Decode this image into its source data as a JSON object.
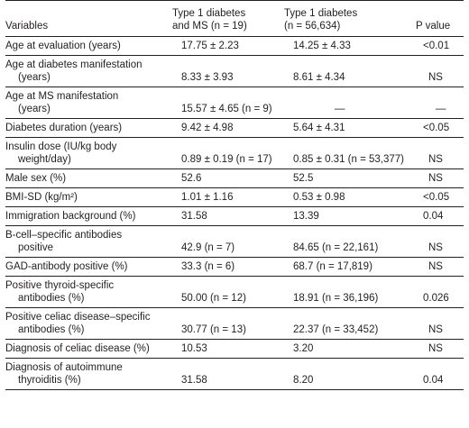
{
  "header": {
    "variables": "Variables",
    "col1_line1": "Type 1 diabetes",
    "col1_line2": "and MS (n = 19)",
    "col2_line1": "Type 1 diabetes",
    "col2_line2": "(n = 56,634)",
    "pvalue": "P value"
  },
  "rows": [
    {
      "label1": "Age at evaluation (years)",
      "label2": "",
      "v1": "17.75 ± 2.23",
      "v2": "14.25 ± 4.33",
      "p": "<0.01"
    },
    {
      "label1": "Age at diabetes manifestation",
      "label2": "(years)",
      "v1": "8.33 ± 3.93",
      "v2": "8.61 ± 4.34",
      "p": "NS"
    },
    {
      "label1": "Age at MS manifestation",
      "label2": "(years)",
      "v1": "15.57 ± 4.65 (n = 9)",
      "v2": "—",
      "p": "—"
    },
    {
      "label1": "Diabetes duration (years)",
      "label2": "",
      "v1": "9.42 ± 4.98",
      "v2": "5.64 ± 4.31",
      "p": "<0.05"
    },
    {
      "label1": "Insulin dose (IU/kg body",
      "label2": "weight/day)",
      "v1": "0.89 ± 0.19 (n = 17)",
      "v2": "0.85 ± 0.31 (n = 53,377)",
      "p": "NS"
    },
    {
      "label1": "Male sex (%)",
      "label2": "",
      "v1": "52.6",
      "v2": "52.5",
      "p": "NS"
    },
    {
      "label1": "BMI-SD (kg/m²)",
      "label2": "",
      "v1": "1.01 ± 1.16",
      "v2": "0.53 ± 0.98",
      "p": "<0.05"
    },
    {
      "label1": "Immigration background (%)",
      "label2": "",
      "v1": "31.58",
      "v2": "13.39",
      "p": "0.04"
    },
    {
      "label1": "B-cell–specific antibodies",
      "label2": "positive",
      "v1": "42.9 (n = 7)",
      "v2": "84.65 (n = 22,161)",
      "p": "NS"
    },
    {
      "label1": "GAD-antibody positive (%)",
      "label2": "",
      "v1": "33.3 (n = 6)",
      "v2": "68.7 (n = 17,819)",
      "p": "NS"
    },
    {
      "label1": "Positive thyroid-specific",
      "label2": "antibodies (%)",
      "v1": "50.00 (n = 12)",
      "v2": "18.91 (n = 36,196)",
      "p": "0.026"
    },
    {
      "label1": "Positive celiac disease–specific",
      "label2": "antibodies (%)",
      "v1": "30.77 (n = 13)",
      "v2": "22.37 (n = 33,452)",
      "p": "NS"
    },
    {
      "label1": "Diagnosis of celiac disease (%)",
      "label2": "",
      "v1": "10.53",
      "v2": "3.20",
      "p": "NS"
    },
    {
      "label1": "Diagnosis of autoimmune",
      "label2": "thyroiditis (%)",
      "v1": "31.58",
      "v2": "8.20",
      "p": "0.04"
    }
  ]
}
